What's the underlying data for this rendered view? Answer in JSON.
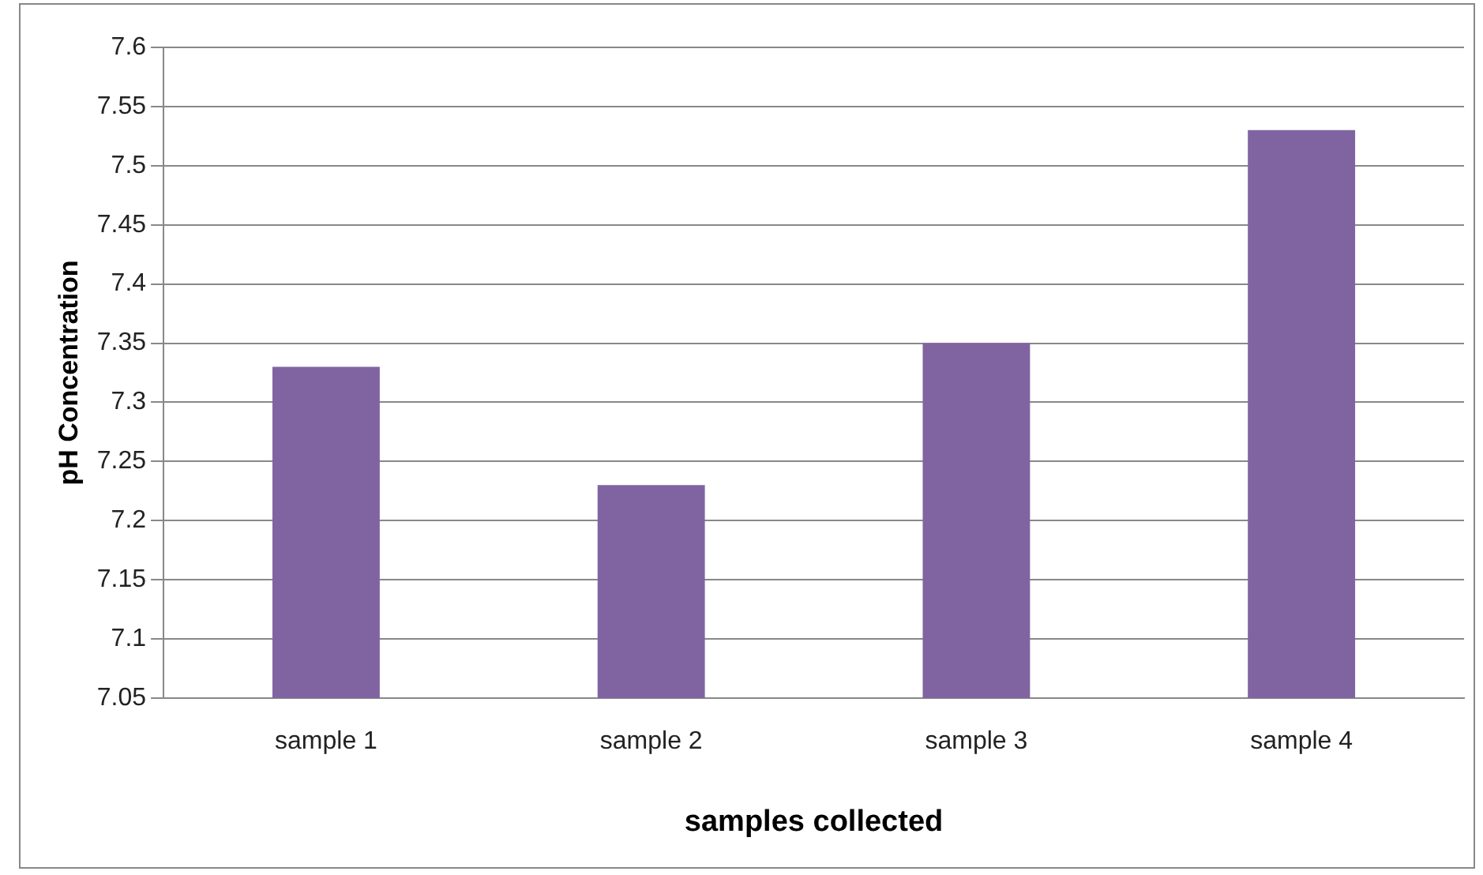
{
  "chart_data": {
    "type": "bar",
    "xlabel": "samples collected",
    "ylabel": "pH Concentration",
    "categories": [
      "sample 1",
      "sample 2",
      "sample 3",
      "sample 4"
    ],
    "values": [
      7.33,
      7.23,
      7.35,
      7.53
    ],
    "color": "#8064a2",
    "ylim": [
      7.05,
      7.6
    ],
    "yticks": [
      7.05,
      7.1,
      7.15,
      7.2,
      7.25,
      7.3,
      7.35,
      7.4,
      7.45,
      7.5,
      7.55,
      7.6
    ],
    "grid": "y",
    "legend": false
  }
}
